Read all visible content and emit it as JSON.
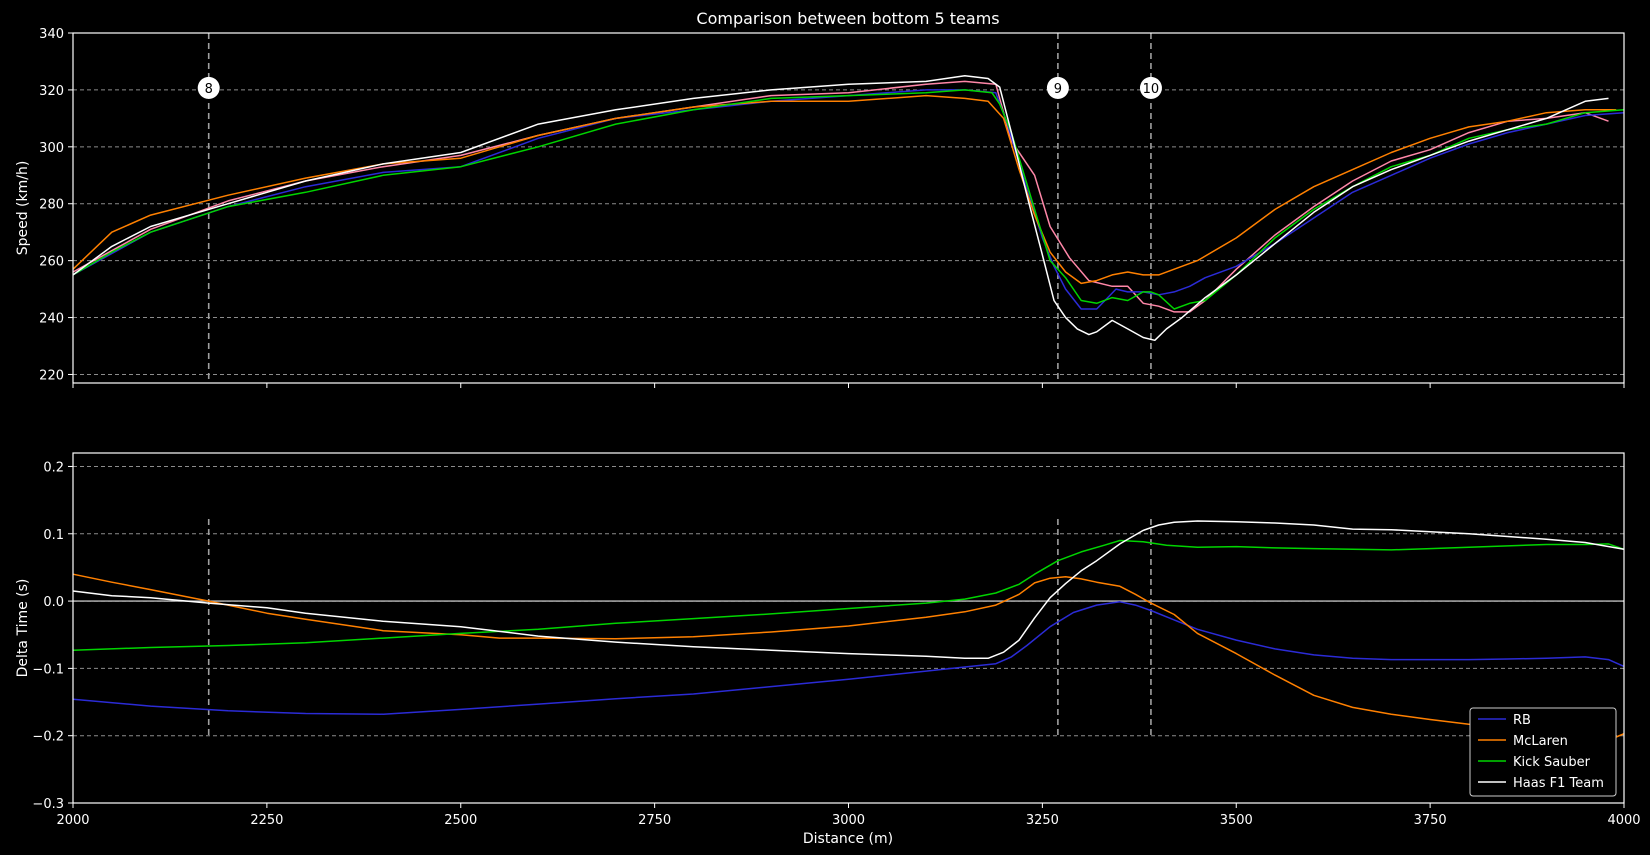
{
  "chart_data": {
    "type": "line",
    "title": "Comparison between bottom 5 teams",
    "xlabel": "Distance (m)",
    "xlim": [
      2000,
      4000
    ],
    "x_ticks": [
      2000,
      2250,
      2500,
      2750,
      3000,
      3250,
      3500,
      3750,
      4000
    ],
    "corners": [
      {
        "label": "8",
        "x": 2175
      },
      {
        "label": "9",
        "x": 3270
      },
      {
        "label": "10",
        "x": 3390
      }
    ],
    "colors": {
      "RB": "#2b2bd6",
      "McLaren": "#ff8000",
      "Kick Sauber": "#00d400",
      "Haas F1 Team": "#ffffff",
      "extra": "#ff87a8",
      "grid": "#8c8c8c",
      "corner_line": "#a0a0a0",
      "background": "#000000"
    },
    "speed_panel": {
      "ylabel": "Speed (km/h)",
      "ylim": [
        217,
        340
      ],
      "y_ticks": [
        220,
        240,
        260,
        280,
        300,
        320,
        340
      ],
      "series": [
        {
          "key": "extra",
          "x": [
            2000,
            2100,
            2200,
            2300,
            2400,
            2500,
            2600,
            2700,
            2800,
            2900,
            3000,
            3100,
            3150,
            3190,
            3210,
            3240,
            3260,
            3285,
            3310,
            3340,
            3360,
            3380,
            3400,
            3420,
            3440,
            3460,
            3500,
            3550,
            3600,
            3650,
            3700,
            3750,
            3800,
            3850,
            3900,
            3950,
            3980
          ],
          "y": [
            256,
            271,
            281,
            288,
            293,
            297,
            304,
            310,
            314,
            318,
            319,
            322,
            323,
            322,
            302,
            290,
            272,
            261,
            253,
            251,
            251,
            245,
            244,
            242,
            242,
            246,
            257,
            269,
            279,
            288,
            295,
            299,
            305,
            309,
            310,
            312,
            309
          ]
        },
        {
          "name": "RB",
          "key": "RB",
          "x": [
            2000,
            2100,
            2200,
            2300,
            2400,
            2500,
            2600,
            2700,
            2800,
            2900,
            3000,
            3100,
            3150,
            3190,
            3205,
            3230,
            3250,
            3265,
            3280,
            3300,
            3320,
            3345,
            3360,
            3380,
            3400,
            3420,
            3440,
            3460,
            3500,
            3550,
            3600,
            3650,
            3700,
            3750,
            3800,
            3850,
            3900,
            3950,
            4000
          ],
          "y": [
            255,
            270,
            279,
            286,
            291,
            293,
            303,
            310,
            313,
            316,
            318,
            320,
            320,
            319,
            308,
            285,
            268,
            258,
            250,
            243,
            243,
            250,
            249,
            249,
            248,
            249,
            251,
            254,
            258,
            266,
            275,
            284,
            290,
            296,
            301,
            305,
            308,
            311,
            312
          ]
        },
        {
          "name": "McLaren",
          "key": "McLaren",
          "x": [
            2000,
            2050,
            2100,
            2200,
            2300,
            2400,
            2500,
            2600,
            2700,
            2800,
            2900,
            3000,
            3100,
            3150,
            3180,
            3200,
            3220,
            3240,
            3260,
            3280,
            3300,
            3320,
            3340,
            3360,
            3380,
            3400,
            3420,
            3450,
            3500,
            3550,
            3600,
            3650,
            3700,
            3750,
            3800,
            3850,
            3900,
            3950,
            3990
          ],
          "y": [
            257,
            270,
            276,
            283,
            289,
            294,
            296,
            304,
            310,
            314,
            316,
            316,
            318,
            317,
            316,
            310,
            292,
            276,
            263,
            256,
            252,
            253,
            255,
            256,
            255,
            255,
            257,
            260,
            268,
            278,
            286,
            292,
            298,
            303,
            307,
            309,
            312,
            313,
            313
          ]
        },
        {
          "name": "Kick Sauber",
          "key": "Kick Sauber",
          "x": [
            2000,
            2050,
            2100,
            2200,
            2300,
            2400,
            2500,
            2600,
            2700,
            2800,
            2900,
            3000,
            3100,
            3150,
            3185,
            3195,
            3210,
            3240,
            3260,
            3280,
            3300,
            3320,
            3340,
            3360,
            3380,
            3390,
            3400,
            3420,
            3440,
            3460,
            3500,
            3550,
            3600,
            3650,
            3700,
            3750,
            3800,
            3850,
            3900,
            3950,
            4000
          ],
          "y": [
            255,
            263,
            270,
            279,
            284,
            290,
            293,
            300,
            308,
            313,
            317,
            318,
            319,
            320,
            319,
            315,
            305,
            278,
            260,
            254,
            246,
            245,
            247,
            246,
            249,
            249,
            248,
            243,
            245,
            246,
            255,
            268,
            278,
            286,
            293,
            297,
            303,
            306,
            308,
            312,
            313
          ]
        },
        {
          "name": "Haas F1 Team",
          "key": "Haas F1 Team",
          "x": [
            2000,
            2050,
            2100,
            2200,
            2300,
            2400,
            2500,
            2600,
            2700,
            2800,
            2900,
            3000,
            3100,
            3150,
            3180,
            3195,
            3210,
            3230,
            3250,
            3265,
            3280,
            3295,
            3310,
            3320,
            3340,
            3360,
            3380,
            3395,
            3410,
            3430,
            3460,
            3500,
            3550,
            3600,
            3650,
            3700,
            3750,
            3800,
            3850,
            3900,
            3950,
            3980
          ],
          "y": [
            255,
            265,
            272,
            280,
            288,
            294,
            298,
            308,
            313,
            317,
            320,
            322,
            323,
            325,
            324,
            321,
            305,
            283,
            262,
            246,
            240,
            236,
            234,
            235,
            239,
            236,
            233,
            232,
            236,
            240,
            247,
            255,
            266,
            277,
            286,
            292,
            297,
            302,
            306,
            310,
            316,
            317
          ]
        }
      ]
    },
    "delta_panel": {
      "ylabel": "Delta Time (s)",
      "ylim": [
        -0.3,
        0.22
      ],
      "y_ticks": [
        -0.3,
        -0.2,
        -0.1,
        0.0,
        0.1,
        0.2
      ],
      "y_tick_labels": [
        "−0.3",
        "−0.2",
        "−0.1",
        "0.0",
        "0.1",
        "0.2"
      ],
      "series": [
        {
          "name": "RB",
          "key": "RB",
          "x": [
            2000,
            2100,
            2200,
            2300,
            2400,
            2500,
            2600,
            2700,
            2800,
            2900,
            3000,
            3100,
            3150,
            3190,
            3210,
            3230,
            3260,
            3290,
            3320,
            3350,
            3370,
            3390,
            3420,
            3450,
            3500,
            3550,
            3600,
            3650,
            3700,
            3750,
            3800,
            3850,
            3900,
            3950,
            3980,
            4000
          ],
          "y": [
            -0.146,
            -0.156,
            -0.163,
            -0.167,
            -0.168,
            -0.161,
            -0.153,
            -0.145,
            -0.138,
            -0.127,
            -0.116,
            -0.104,
            -0.098,
            -0.093,
            -0.083,
            -0.066,
            -0.038,
            -0.017,
            -0.006,
            -0.001,
            -0.006,
            -0.014,
            -0.028,
            -0.042,
            -0.058,
            -0.071,
            -0.08,
            -0.085,
            -0.087,
            -0.087,
            -0.087,
            -0.086,
            -0.085,
            -0.083,
            -0.087,
            -0.097
          ]
        },
        {
          "name": "McLaren",
          "key": "McLaren",
          "x": [
            2000,
            2050,
            2100,
            2175,
            2250,
            2300,
            2400,
            2500,
            2550,
            2600,
            2700,
            2800,
            2900,
            3000,
            3100,
            3150,
            3190,
            3220,
            3240,
            3260,
            3280,
            3300,
            3320,
            3350,
            3370,
            3390,
            3420,
            3450,
            3500,
            3550,
            3600,
            3650,
            3700,
            3750,
            3800,
            3850,
            3900,
            3950,
            3990,
            4000
          ],
          "y": [
            0.04,
            0.028,
            0.017,
            0.0,
            -0.018,
            -0.027,
            -0.044,
            -0.05,
            -0.055,
            -0.055,
            -0.056,
            -0.053,
            -0.046,
            -0.037,
            -0.024,
            -0.016,
            -0.006,
            0.01,
            0.027,
            0.034,
            0.036,
            0.033,
            0.028,
            0.022,
            0.01,
            -0.003,
            -0.02,
            -0.048,
            -0.078,
            -0.11,
            -0.14,
            -0.158,
            -0.168,
            -0.176,
            -0.183,
            -0.189,
            -0.193,
            -0.196,
            -0.202,
            -0.197
          ]
        },
        {
          "name": "Kick Sauber",
          "key": "Kick Sauber",
          "x": [
            2000,
            2100,
            2200,
            2300,
            2400,
            2500,
            2600,
            2700,
            2800,
            2900,
            3000,
            3100,
            3150,
            3190,
            3220,
            3240,
            3270,
            3300,
            3330,
            3350,
            3380,
            3410,
            3450,
            3500,
            3550,
            3600,
            3650,
            3700,
            3750,
            3800,
            3850,
            3900,
            3950,
            3980,
            4000
          ],
          "y": [
            -0.073,
            -0.069,
            -0.066,
            -0.062,
            -0.055,
            -0.048,
            -0.042,
            -0.033,
            -0.026,
            -0.019,
            -0.011,
            -0.003,
            0.003,
            0.012,
            0.025,
            0.04,
            0.06,
            0.073,
            0.083,
            0.09,
            0.088,
            0.083,
            0.08,
            0.081,
            0.079,
            0.078,
            0.077,
            0.076,
            0.078,
            0.08,
            0.082,
            0.084,
            0.084,
            0.085,
            0.077
          ]
        },
        {
          "name": "Haas F1 Team",
          "key": "Haas F1 Team",
          "x": [
            2000,
            2050,
            2100,
            2175,
            2250,
            2300,
            2400,
            2500,
            2550,
            2600,
            2700,
            2800,
            2900,
            3000,
            3100,
            3150,
            3180,
            3200,
            3220,
            3240,
            3260,
            3280,
            3300,
            3320,
            3350,
            3380,
            3400,
            3420,
            3450,
            3500,
            3550,
            3600,
            3650,
            3700,
            3750,
            3800,
            3850,
            3900,
            3950,
            4000
          ],
          "y": [
            0.015,
            0.008,
            0.005,
            -0.003,
            -0.01,
            -0.018,
            -0.03,
            -0.038,
            -0.045,
            -0.052,
            -0.061,
            -0.068,
            -0.073,
            -0.078,
            -0.082,
            -0.085,
            -0.085,
            -0.076,
            -0.058,
            -0.025,
            0.005,
            0.026,
            0.045,
            0.06,
            0.085,
            0.105,
            0.113,
            0.117,
            0.119,
            0.118,
            0.116,
            0.113,
            0.107,
            0.106,
            0.103,
            0.1,
            0.096,
            0.092,
            0.087,
            0.077
          ]
        }
      ]
    },
    "legend": {
      "position": "lower right",
      "entries": [
        "RB",
        "McLaren",
        "Kick Sauber",
        "Haas F1 Team"
      ]
    }
  }
}
